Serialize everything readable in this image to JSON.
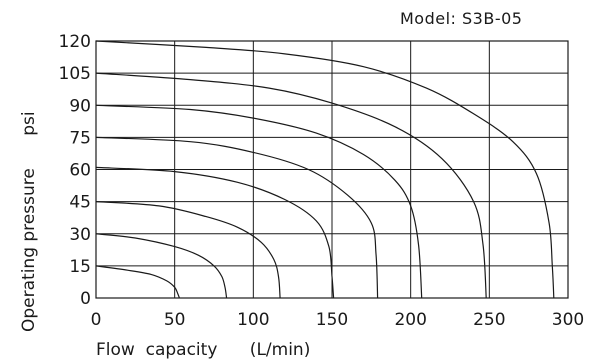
{
  "chart_data": {
    "type": "line",
    "title": "Model: S3B-05",
    "xlabel": "Flow  capacity      (L/min)",
    "ylabel": "Operating pressure      psi",
    "xlim": [
      0,
      300
    ],
    "ylim": [
      0,
      120
    ],
    "xticks": [
      "0",
      "50",
      "100",
      "150",
      "200",
      "250",
      "300"
    ],
    "yticks": [
      "0",
      "15",
      "30",
      "45",
      "60",
      "75",
      "90",
      "105",
      "120"
    ],
    "grid": true,
    "legend": "none",
    "series": [
      {
        "values": [
          [
            0,
            15
          ],
          [
            20,
            13
          ],
          [
            35,
            11
          ],
          [
            45,
            8
          ],
          [
            50,
            5
          ],
          [
            52,
            2
          ],
          [
            53,
            0
          ]
        ]
      },
      {
        "values": [
          [
            0,
            30
          ],
          [
            25,
            28
          ],
          [
            50,
            24
          ],
          [
            65,
            20
          ],
          [
            75,
            15
          ],
          [
            80,
            10
          ],
          [
            82,
            5
          ],
          [
            83,
            0
          ]
        ]
      },
      {
        "values": [
          [
            0,
            45
          ],
          [
            40,
            43
          ],
          [
            70,
            38
          ],
          [
            90,
            33
          ],
          [
            105,
            26
          ],
          [
            113,
            18
          ],
          [
            116,
            10
          ],
          [
            117,
            0
          ]
        ]
      },
      {
        "values": [
          [
            0,
            61
          ],
          [
            50,
            59
          ],
          [
            90,
            54
          ],
          [
            120,
            46
          ],
          [
            140,
            36
          ],
          [
            148,
            24
          ],
          [
            150,
            10
          ],
          [
            151,
            0
          ]
        ]
      },
      {
        "values": [
          [
            0,
            75
          ],
          [
            60,
            73
          ],
          [
            100,
            68
          ],
          [
            135,
            60
          ],
          [
            160,
            48
          ],
          [
            175,
            35
          ],
          [
            178,
            20
          ],
          [
            179,
            0
          ]
        ]
      },
      {
        "values": [
          [
            0,
            90
          ],
          [
            60,
            88
          ],
          [
            100,
            84
          ],
          [
            140,
            77
          ],
          [
            170,
            67
          ],
          [
            190,
            55
          ],
          [
            200,
            43
          ],
          [
            205,
            25
          ],
          [
            207,
            0
          ]
        ]
      },
      {
        "values": [
          [
            0,
            105
          ],
          [
            60,
            102
          ],
          [
            110,
            98
          ],
          [
            150,
            91
          ],
          [
            190,
            80
          ],
          [
            220,
            65
          ],
          [
            240,
            45
          ],
          [
            246,
            25
          ],
          [
            248,
            0
          ]
        ]
      },
      {
        "values": [
          [
            0,
            120
          ],
          [
            70,
            117
          ],
          [
            120,
            114
          ],
          [
            170,
            108
          ],
          [
            210,
            98
          ],
          [
            240,
            86
          ],
          [
            265,
            73
          ],
          [
            280,
            58
          ],
          [
            288,
            35
          ],
          [
            290,
            15
          ],
          [
            291,
            0
          ]
        ]
      }
    ]
  }
}
